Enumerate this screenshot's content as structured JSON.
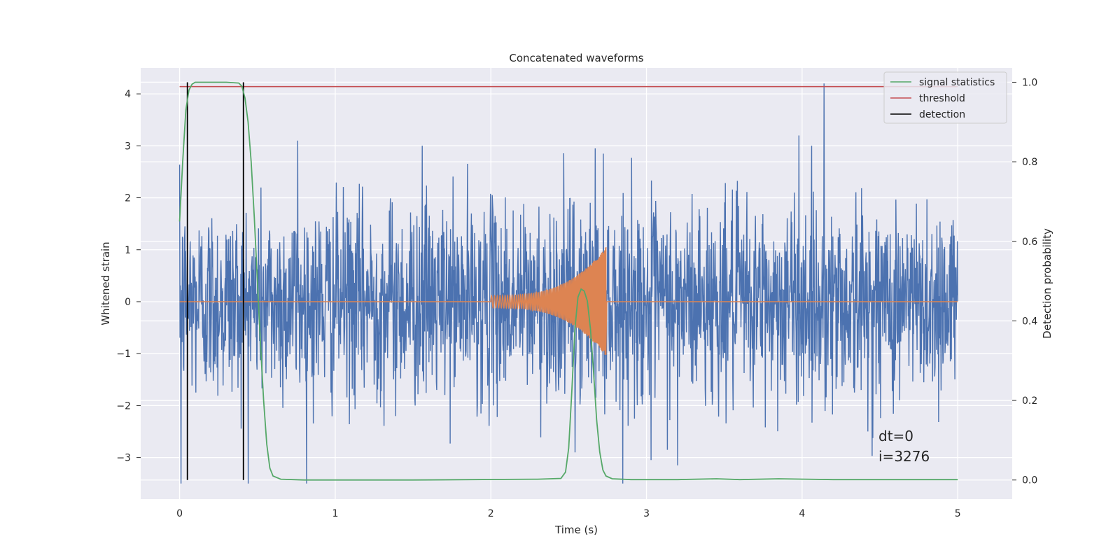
{
  "chart_data": {
    "type": "line",
    "title": "Concatenated waveforms",
    "xlabel": "Time (s)",
    "ylabel_left": "Whitened strain",
    "ylabel_right": "Detection probability",
    "xlim": [
      -0.25,
      5.35
    ],
    "ylim_left": [
      -3.8,
      4.5
    ],
    "ylim_right": [
      -0.048,
      1.036
    ],
    "x_ticks": [
      0,
      1,
      2,
      3,
      4,
      5
    ],
    "y_ticks_left": [
      -3,
      -2,
      -1,
      0,
      1,
      2,
      3,
      4
    ],
    "y_ticks_right": [
      0.0,
      0.2,
      0.4,
      0.6,
      0.8,
      1.0
    ],
    "y_tick_labels_left": [
      "−3",
      "−2",
      "−1",
      "0",
      "1",
      "2",
      "3",
      "4"
    ],
    "y_tick_labels_right": [
      "0.0",
      "0.2",
      "0.4",
      "0.6",
      "0.8",
      "1.0"
    ],
    "grid": true,
    "legend_position": "top-right",
    "series": [
      {
        "name": "",
        "axis": "left",
        "color": "#4c72b0",
        "kind": "whitened noise strain",
        "x_range": [
          0,
          5
        ],
        "approx_std": 0.95,
        "peaks": [
          {
            "x": 0.76,
            "y": 3.1
          },
          {
            "x": 1.56,
            "y": 3.0
          },
          {
            "x": 2.67,
            "y": 2.95
          },
          {
            "x": 3.98,
            "y": 3.2
          },
          {
            "x": 4.14,
            "y": 4.2
          },
          {
            "x": 0.01,
            "y": -3.5
          },
          {
            "x": 3.2,
            "y": -3.15
          },
          {
            "x": 3.03,
            "y": -3.05
          },
          {
            "x": 2.54,
            "y": -2.9
          }
        ]
      },
      {
        "name": "",
        "axis": "left",
        "color": "#dd8452",
        "kind": "injected chirp waveform",
        "x_start": 2.0,
        "x_end": 2.74,
        "start_amplitude": 0.12,
        "peak_amplitude": 1.05,
        "min_amplitude": -0.9
      },
      {
        "name": "signal statistics",
        "axis": "right",
        "color": "#55a868",
        "x": [
          0.0,
          0.02,
          0.04,
          0.06,
          0.08,
          0.1,
          0.2,
          0.3,
          0.38,
          0.4,
          0.42,
          0.44,
          0.46,
          0.48,
          0.5,
          0.52,
          0.54,
          0.56,
          0.58,
          0.6,
          0.65,
          0.8,
          1.5,
          2.3,
          2.45,
          2.48,
          2.5,
          2.52,
          2.54,
          2.56,
          2.58,
          2.6,
          2.62,
          2.64,
          2.66,
          2.68,
          2.7,
          2.72,
          2.74,
          2.78,
          2.9,
          3.2,
          3.45,
          3.6,
          3.85,
          4.2,
          5.0
        ],
        "y": [
          0.65,
          0.8,
          0.93,
          0.98,
          0.995,
          1.0,
          1.0,
          1.0,
          0.998,
          0.99,
          0.96,
          0.9,
          0.8,
          0.66,
          0.5,
          0.34,
          0.2,
          0.09,
          0.03,
          0.01,
          0.002,
          0.0,
          0.0,
          0.002,
          0.004,
          0.02,
          0.08,
          0.22,
          0.38,
          0.46,
          0.48,
          0.475,
          0.45,
          0.38,
          0.27,
          0.15,
          0.07,
          0.025,
          0.01,
          0.003,
          0.001,
          0.001,
          0.003,
          0.001,
          0.003,
          0.001,
          0.001
        ]
      },
      {
        "name": "threshold",
        "axis": "right",
        "color": "#c44e52",
        "x": [
          0,
          5
        ],
        "y": [
          0.989,
          0.989
        ]
      },
      {
        "name": "detection",
        "axis": "right",
        "color": "#000000",
        "kind": "vertical lines",
        "x": [
          0.05,
          0.41
        ],
        "y_range": [
          0.0,
          1.0
        ]
      }
    ],
    "annotations": [
      "dt=0",
      "i=3276"
    ]
  }
}
